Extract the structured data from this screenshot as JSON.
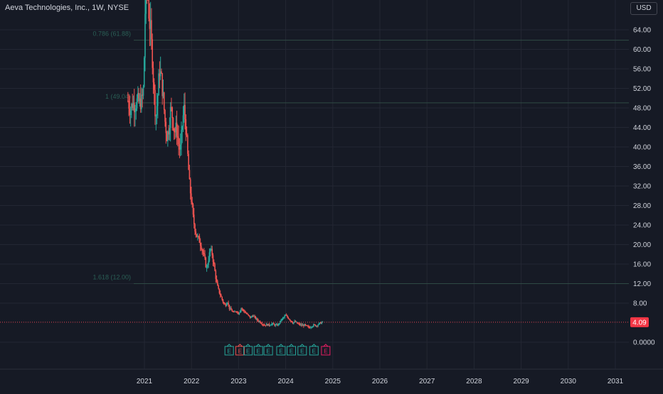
{
  "header": {
    "title": "Aeva Technologies, Inc., 1W, NYSE",
    "currency": "USD"
  },
  "colors": {
    "background": "#161a25",
    "grid": "#232733",
    "up": "#26a69a",
    "down": "#ef5350",
    "fib_line": "#2f4a44",
    "fib_label": "#2a5e55",
    "price_line": "#e04352",
    "price_badge": "#f23645",
    "axis_text": "#d1d4dc"
  },
  "chart_data": {
    "type": "candlestick",
    "title": "Aeva Technologies, Inc., 1W, NYSE",
    "ylim": [
      -3,
      68
    ],
    "xlim": [
      2020.2,
      2031.3
    ],
    "y_ticks": [
      "64.00",
      "60.00",
      "56.00",
      "52.00",
      "48.00",
      "44.00",
      "40.00",
      "36.00",
      "32.00",
      "28.00",
      "24.00",
      "20.00",
      "16.00",
      "12.00",
      "8.00",
      "0.0000"
    ],
    "x_ticks": [
      "2021",
      "2022",
      "2023",
      "2024",
      "2025",
      "2026",
      "2027",
      "2028",
      "2029",
      "2030",
      "2031"
    ],
    "grid": true,
    "fib_levels": [
      {
        "label": "0.786 (61.88)",
        "value": 61.88
      },
      {
        "label": "1 (49.04)",
        "value": 49.04
      },
      {
        "label": "1.618 (12.00)",
        "value": 12.0
      }
    ],
    "last_price": {
      "label": "4.09",
      "value": 4.09
    },
    "earnings_markers": [
      {
        "t": 2022.8,
        "color": "#26a69a"
      },
      {
        "t": 2023.03,
        "color": "#ef5350"
      },
      {
        "t": 2023.2,
        "color": "#26a69a"
      },
      {
        "t": 2023.42,
        "color": "#26a69a"
      },
      {
        "t": 2023.63,
        "color": "#26a69a"
      },
      {
        "t": 2023.9,
        "color": "#26a69a"
      },
      {
        "t": 2024.12,
        "color": "#26a69a"
      },
      {
        "t": 2024.35,
        "color": "#26a69a"
      },
      {
        "t": 2024.6,
        "color": "#26a69a"
      },
      {
        "t": 2024.85,
        "color": "#e91e63"
      }
    ],
    "marker_glyph": "E",
    "price_path": [
      [
        2020.65,
        49.5
      ],
      [
        2020.7,
        47.5
      ],
      [
        2020.75,
        49.0
      ],
      [
        2020.8,
        48.5
      ],
      [
        2020.85,
        49.5
      ],
      [
        2020.9,
        49.0
      ],
      [
        2020.95,
        49.5
      ],
      [
        2020.98,
        52.0
      ],
      [
        2021.0,
        60.0
      ],
      [
        2021.03,
        75.0
      ],
      [
        2021.07,
        72.0
      ],
      [
        2021.1,
        66.0
      ],
      [
        2021.13,
        64.0
      ],
      [
        2021.17,
        58.0
      ],
      [
        2021.2,
        52.0
      ],
      [
        2021.24,
        46.0
      ],
      [
        2021.28,
        50.0
      ],
      [
        2021.32,
        56.0
      ],
      [
        2021.36,
        54.0
      ],
      [
        2021.4,
        50.0
      ],
      [
        2021.44,
        45.0
      ],
      [
        2021.48,
        42.0
      ],
      [
        2021.52,
        44.0
      ],
      [
        2021.56,
        48.0
      ],
      [
        2021.6,
        46.0
      ],
      [
        2021.64,
        43.0
      ],
      [
        2021.68,
        44.0
      ],
      [
        2021.72,
        41.0
      ],
      [
        2021.76,
        39.0
      ],
      [
        2021.8,
        44.0
      ],
      [
        2021.84,
        48.0
      ],
      [
        2021.88,
        44.0
      ],
      [
        2021.92,
        38.0
      ],
      [
        2021.96,
        32.0
      ],
      [
        2022.0,
        29.0
      ],
      [
        2022.04,
        25.0
      ],
      [
        2022.08,
        23.0
      ],
      [
        2022.12,
        21.5
      ],
      [
        2022.16,
        21.0
      ],
      [
        2022.2,
        20.0
      ],
      [
        2022.24,
        18.5
      ],
      [
        2022.28,
        17.0
      ],
      [
        2022.32,
        15.0
      ],
      [
        2022.36,
        17.0
      ],
      [
        2022.4,
        19.0
      ],
      [
        2022.44,
        18.0
      ],
      [
        2022.48,
        15.5
      ],
      [
        2022.52,
        13.0
      ],
      [
        2022.56,
        11.0
      ],
      [
        2022.6,
        10.0
      ],
      [
        2022.64,
        9.0
      ],
      [
        2022.68,
        8.0
      ],
      [
        2022.72,
        7.5
      ],
      [
        2022.76,
        8.5
      ],
      [
        2022.8,
        7.0
      ],
      [
        2022.85,
        6.5
      ],
      [
        2022.9,
        6.0
      ],
      [
        2022.95,
        6.5
      ],
      [
        2023.0,
        5.8
      ],
      [
        2023.05,
        7.0
      ],
      [
        2023.1,
        6.5
      ],
      [
        2023.15,
        6.0
      ],
      [
        2023.2,
        5.5
      ],
      [
        2023.25,
        5.0
      ],
      [
        2023.3,
        5.5
      ],
      [
        2023.35,
        5.0
      ],
      [
        2023.4,
        4.5
      ],
      [
        2023.45,
        4.2
      ],
      [
        2023.5,
        3.8
      ],
      [
        2023.55,
        3.5
      ],
      [
        2023.6,
        3.6
      ],
      [
        2023.65,
        3.5
      ],
      [
        2023.7,
        3.8
      ],
      [
        2023.75,
        3.6
      ],
      [
        2023.8,
        3.4
      ],
      [
        2023.85,
        3.7
      ],
      [
        2023.9,
        4.5
      ],
      [
        2023.95,
        5.0
      ],
      [
        2024.0,
        5.5
      ],
      [
        2024.05,
        5.0
      ],
      [
        2024.1,
        4.5
      ],
      [
        2024.15,
        4.0
      ],
      [
        2024.2,
        4.2
      ],
      [
        2024.25,
        3.8
      ],
      [
        2024.3,
        3.6
      ],
      [
        2024.35,
        3.4
      ],
      [
        2024.4,
        3.5
      ],
      [
        2024.45,
        3.2
      ],
      [
        2024.5,
        3.0
      ],
      [
        2024.55,
        3.3
      ],
      [
        2024.6,
        3.5
      ],
      [
        2024.65,
        3.4
      ],
      [
        2024.7,
        3.7
      ],
      [
        2024.75,
        4.0
      ],
      [
        2024.8,
        4.09
      ]
    ]
  }
}
